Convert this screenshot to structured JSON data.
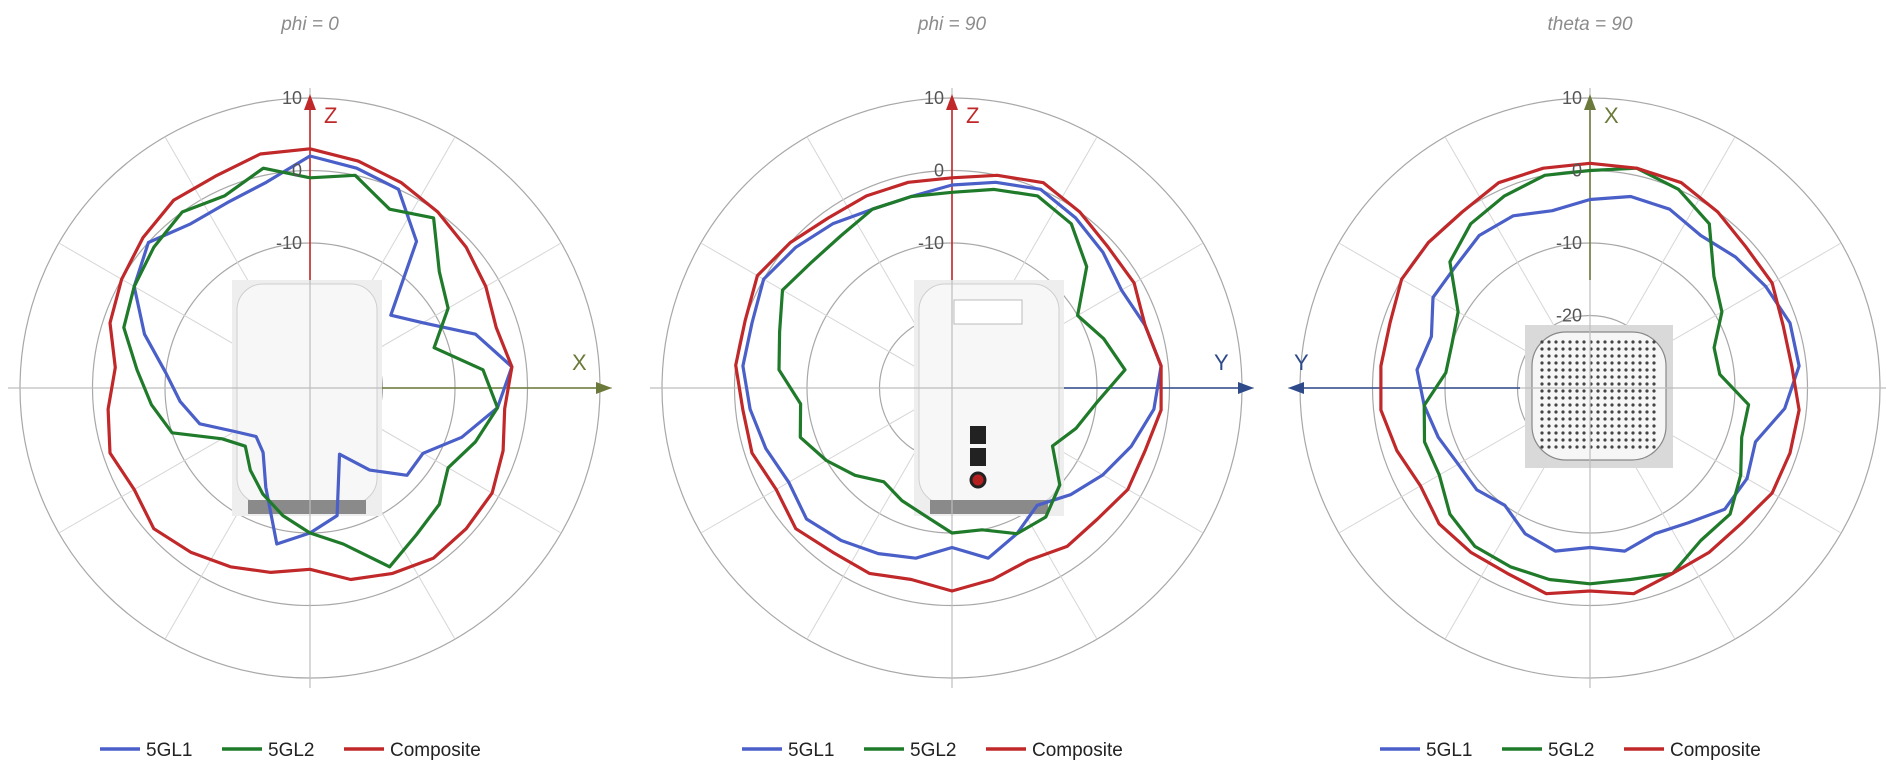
{
  "chart_data": [
    {
      "type": "polar-line",
      "title": "phi = 0",
      "r_ticks": [
        "10",
        "0",
        "-10"
      ],
      "r_range": [
        -30,
        10
      ],
      "axis_labels": {
        "vertical": "Z",
        "horizontal": "X"
      },
      "device_photo": "router-side-view",
      "series": [
        {
          "name": "5GL1",
          "color": "#4a5fc8",
          "values": [
            2,
            1,
            0,
            -5,
            -15,
            -12,
            -6,
            -2,
            -4,
            -8,
            -12,
            -12,
            -16,
            -20,
            -12,
            -10,
            -8,
            -15,
            -19,
            -20,
            -18,
            -14,
            -12,
            -10,
            -6,
            -2,
            0,
            -2,
            -2,
            -1
          ]
        },
        {
          "name": "5GL2",
          "color": "#1f7a2a",
          "values": [
            -1,
            0,
            -3,
            -1,
            -6,
            -8,
            -12,
            -6,
            -4,
            -6,
            -8,
            -6,
            -5,
            -3,
            -8,
            -10,
            -12,
            -14,
            -16,
            -18,
            -16,
            -10,
            -8,
            -6,
            -3,
            -2,
            -1,
            0,
            -1,
            1
          ]
        },
        {
          "name": "Composite",
          "color": "#c0282a",
          "values": [
            3,
            2,
            1,
            0,
            -1,
            -2,
            -3,
            -2,
            -3,
            -2,
            -1,
            -1,
            -1,
            -2,
            -3,
            -5,
            -4,
            -3,
            -2,
            -1,
            -2,
            -1,
            -2,
            -3,
            -1,
            0,
            1,
            2,
            2,
            3
          ]
        }
      ],
      "legend": [
        "5GL1",
        "5GL2",
        "Composite"
      ]
    },
    {
      "type": "polar-line",
      "title": "phi = 90",
      "r_ticks": [
        "10",
        "0",
        "-10"
      ],
      "r_range": [
        -30,
        10
      ],
      "axis_labels": {
        "vertical": "Z",
        "horizontal": "Y"
      },
      "device_photo": "router-front-view",
      "series": [
        {
          "name": "5GL1",
          "color": "#4a5fc8",
          "values": [
            -2,
            -1,
            0,
            -1,
            -2,
            -3,
            -2,
            -1,
            -2,
            -4,
            -6,
            -8,
            -10,
            -8,
            -6,
            -8,
            -6,
            -5,
            -4,
            -3,
            -4,
            -3,
            -2,
            -1,
            -1,
            0,
            -1,
            -2,
            -3,
            -3
          ]
        },
        {
          "name": "5GL2",
          "color": "#1f7a2a",
          "values": [
            -3,
            -2,
            -1,
            -2,
            -5,
            -10,
            -8,
            -6,
            -10,
            -12,
            -14,
            -10,
            -8,
            -8,
            -10,
            -10,
            -12,
            -13,
            -14,
            -12,
            -10,
            -8,
            -9,
            -6,
            -5,
            -3,
            -4,
            -4,
            -3,
            -3
          ]
        },
        {
          "name": "Composite",
          "color": "#c0282a",
          "values": [
            -1,
            0,
            1,
            0,
            -1,
            -1,
            -2,
            -1,
            -1,
            -2,
            -2,
            -3,
            -3,
            -4,
            -3,
            -2,
            -3,
            -2,
            -2,
            -1,
            -2,
            -1,
            -1,
            0,
            0,
            1,
            0,
            -1,
            -1,
            -1
          ]
        }
      ],
      "legend": [
        "5GL1",
        "5GL2",
        "Composite"
      ]
    },
    {
      "type": "polar-line",
      "title": "theta = 90",
      "r_ticks": [
        "10",
        "0",
        "-10",
        "-20"
      ],
      "r_range": [
        -30,
        10
      ],
      "axis_labels": {
        "vertical": "X",
        "horizontal": "Y"
      },
      "device_photo": "router-top-view",
      "series": [
        {
          "name": "5GL1",
          "color": "#4a5fc8",
          "values": [
            -4,
            -3,
            -3,
            -4,
            -3,
            -2,
            -1,
            -1,
            -3,
            -6,
            -5,
            -5,
            -7,
            -8,
            -7,
            -8,
            -7,
            -8,
            -10,
            -9,
            -9,
            -8,
            -7,
            -6,
            -7,
            -5,
            -5,
            -4,
            -4,
            -5
          ]
        },
        {
          "name": "5GL2",
          "color": "#1f7a2a",
          "values": [
            0,
            1,
            0,
            -2,
            -7,
            -9,
            -12,
            -12,
            -8,
            -8,
            -6,
            -4,
            -4,
            -2,
            -3,
            -3,
            -3,
            -3,
            -3,
            -4,
            -6,
            -6,
            -7,
            -10,
            -10,
            -9,
            -4,
            -2,
            -1,
            0
          ]
        },
        {
          "name": "Composite",
          "color": "#c0282a",
          "values": [
            1,
            1,
            1,
            0,
            -1,
            -1,
            -2,
            -2,
            -1,
            -1,
            -1,
            -2,
            -2,
            -2,
            -1,
            -2,
            -1,
            -2,
            -2,
            -2,
            -3,
            -2,
            -1,
            -1,
            -1,
            0,
            0,
            0,
            1,
            1
          ]
        }
      ],
      "legend": [
        "5GL1",
        "5GL2",
        "Composite"
      ]
    }
  ]
}
